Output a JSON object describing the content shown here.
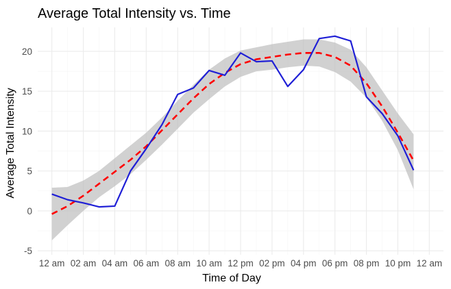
{
  "chart_data": {
    "type": "line",
    "title": "Average Total Intensity vs. Time",
    "xlabel": "Time of Day",
    "ylabel": "Average Total Intensity",
    "x_ticks": [
      "12 am",
      "02 am",
      "04 am",
      "06 am",
      "08 am",
      "10 am",
      "12 pm",
      "02 pm",
      "04 pm",
      "06 pm",
      "08 pm",
      "10 pm",
      "12 am"
    ],
    "x_tick_hours": [
      0,
      2,
      4,
      6,
      8,
      10,
      12,
      14,
      16,
      18,
      20,
      22,
      24
    ],
    "xlim": [
      -0.9,
      24.9
    ],
    "y_ticks": [
      -5,
      0,
      5,
      10,
      15,
      20
    ],
    "ylim": [
      -5.5,
      23.0
    ],
    "grid": true,
    "legend": "none",
    "series": [
      {
        "style": "solid",
        "color": "#1f1fd6",
        "x": [
          0,
          1,
          2,
          3,
          4,
          5,
          6,
          7,
          8,
          9,
          10,
          11,
          12,
          13,
          14,
          15,
          16,
          17,
          18,
          19,
          20,
          21,
          22,
          23
        ],
        "y": [
          2.1,
          1.4,
          1.0,
          0.5,
          0.6,
          5.0,
          7.8,
          10.8,
          14.6,
          15.4,
          17.6,
          17.0,
          19.8,
          18.7,
          18.8,
          15.6,
          17.7,
          21.6,
          21.9,
          21.3,
          14.3,
          12.2,
          9.4,
          5.1
        ]
      },
      {
        "style": "dashed",
        "color": "#ff0000",
        "x": [
          0,
          1,
          2,
          3,
          4,
          5,
          6,
          7,
          8,
          9,
          10,
          11,
          12,
          13,
          14,
          15,
          16,
          17,
          18,
          19,
          20,
          21,
          22,
          23
        ],
        "y": [
          -0.4,
          0.6,
          1.9,
          3.4,
          4.9,
          6.4,
          8.1,
          10.1,
          12.1,
          14.1,
          15.9,
          17.3,
          18.4,
          19.0,
          19.3,
          19.6,
          19.8,
          19.8,
          19.3,
          18.2,
          16.0,
          13.1,
          9.8,
          6.3
        ]
      }
    ],
    "confidence_band": {
      "color": "#bebebe",
      "x": [
        0,
        1,
        2,
        3,
        4,
        5,
        6,
        7,
        8,
        9,
        10,
        11,
        12,
        13,
        14,
        15,
        16,
        17,
        18,
        19,
        20,
        21,
        22,
        23
      ],
      "lower": [
        -3.7,
        -1.8,
        0.0,
        1.7,
        3.1,
        4.6,
        6.4,
        8.3,
        10.3,
        12.3,
        14.0,
        15.6,
        16.8,
        17.5,
        17.7,
        18.0,
        18.2,
        18.1,
        17.4,
        16.2,
        14.2,
        11.3,
        7.6,
        2.7
      ],
      "upper": [
        2.9,
        3.0,
        3.8,
        5.0,
        6.6,
        8.2,
        9.8,
        11.7,
        13.8,
        15.8,
        17.7,
        19.1,
        20.1,
        20.5,
        20.9,
        21.2,
        21.5,
        21.5,
        21.1,
        20.2,
        18.0,
        15.1,
        12.2,
        9.6
      ]
    }
  }
}
